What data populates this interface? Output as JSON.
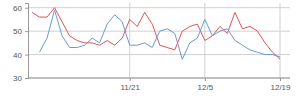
{
  "chart_data": {
    "type": "line",
    "categories": [
      null,
      null,
      null,
      null,
      null,
      null,
      null,
      null,
      null,
      null,
      null,
      null,
      null,
      "11/21",
      null,
      null,
      null,
      null,
      null,
      null,
      null,
      null,
      null,
      "12/5",
      null,
      null,
      null,
      null,
      null,
      null,
      null,
      null,
      null,
      "12/19"
    ],
    "series": [
      {
        "color": "#e05555",
        "values": [
          58,
          56,
          56,
          60,
          54,
          48,
          46,
          45,
          45,
          44,
          46,
          44,
          47,
          55,
          52,
          58,
          53,
          44,
          43,
          42,
          50,
          52,
          53,
          46,
          48,
          52,
          49,
          58,
          51,
          52,
          50,
          45,
          41,
          38
        ]
      },
      {
        "color": "#6a9bd1",
        "values": [
          null,
          41,
          47,
          59,
          48,
          43,
          43,
          44,
          47,
          45,
          53,
          57,
          54,
          44,
          44,
          45,
          43,
          50,
          51,
          49,
          38,
          45,
          47,
          55,
          48,
          50,
          51,
          46,
          44,
          42,
          41,
          40,
          40,
          39
        ]
      }
    ],
    "ylim": [
      30,
      62
    ],
    "yticks": [
      30,
      40,
      50,
      60
    ],
    "grid": true
  }
}
